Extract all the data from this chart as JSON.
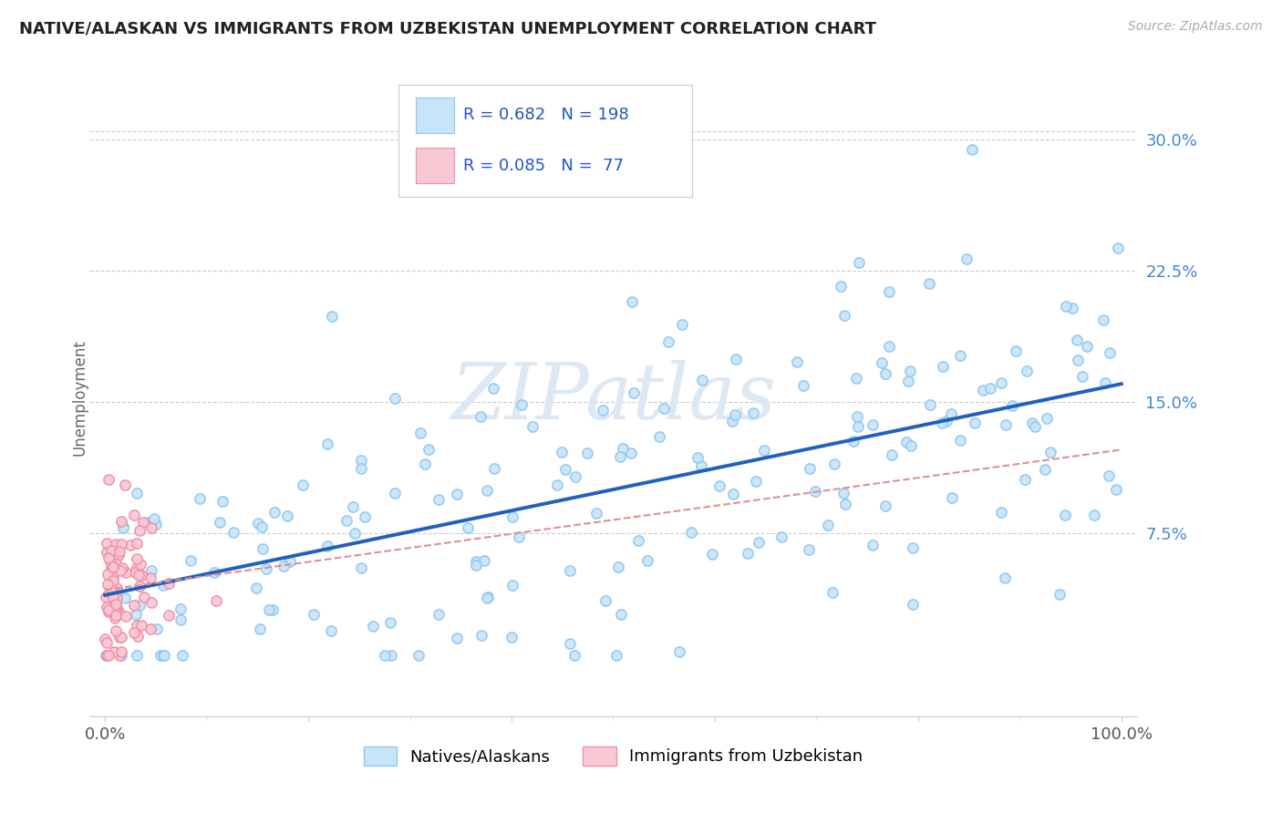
{
  "title": "NATIVE/ALASKAN VS IMMIGRANTS FROM UZBEKISTAN UNEMPLOYMENT CORRELATION CHART",
  "source_text": "Source: ZipAtlas.com",
  "ylabel": "Unemployment",
  "yticks_labels": [
    "7.5%",
    "15.0%",
    "22.5%",
    "30.0%"
  ],
  "ytick_vals": [
    0.075,
    0.15,
    0.225,
    0.3
  ],
  "xlim": [
    -0.015,
    1.015
  ],
  "ylim": [
    -0.03,
    0.335
  ],
  "legend_label1": "Natives/Alaskans",
  "legend_label2": "Immigrants from Uzbekistan",
  "R1": "0.682",
  "N1": "198",
  "R2": "0.085",
  "N2": "77",
  "color_blue": "#90c8f0",
  "color_blue_fill": "#c8e4f8",
  "color_pink": "#f090a8",
  "color_pink_fill": "#f8c8d4",
  "color_blue_line": "#2060c0",
  "color_dashed_line": "#e09090",
  "watermark_color": "#dde8f4",
  "background_color": "#ffffff",
  "grid_color": "#dddddd",
  "title_color": "#222222",
  "source_color": "#aaaaaa",
  "ytick_color": "#4488cc",
  "xtick_color": "#555555"
}
